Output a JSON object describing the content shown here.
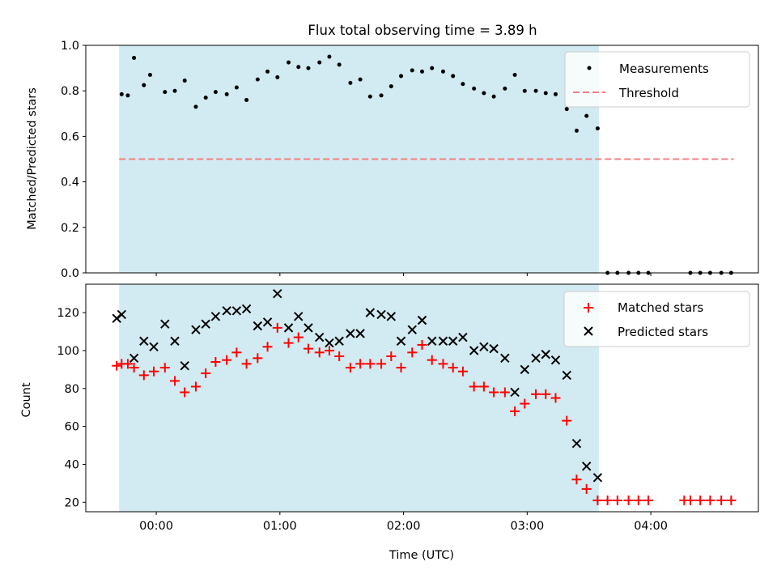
{
  "title": "Flux total observing time = 3.89 h",
  "colors": {
    "shade": "#add8e6",
    "threshold": "#f08080",
    "matched": "#ff0000",
    "predicted": "#000000"
  },
  "chart_data": [
    {
      "type": "scatter",
      "id": "top",
      "ylabel": "Matched/Predicted stars",
      "ylim": [
        0,
        1
      ],
      "yticks": [
        0.0,
        0.2,
        0.4,
        0.6,
        0.8,
        1.0
      ],
      "ytick_labels": [
        "0.0",
        "0.2",
        "0.4",
        "0.6",
        "0.8",
        "1.0"
      ],
      "xlim_hours": [
        -0.57,
        4.87
      ],
      "shaded_span_hours": [
        -0.3,
        3.58
      ],
      "threshold_value": 0.5,
      "threshold_span_hours": [
        -0.3,
        4.67
      ],
      "legend": [
        "Measurements",
        "Threshold"
      ],
      "series": [
        {
          "name": "Measurements",
          "x": [
            -0.28,
            -0.23,
            -0.18,
            -0.1,
            -0.05,
            0.07,
            0.15,
            0.23,
            0.32,
            0.4,
            0.48,
            0.57,
            0.65,
            0.73,
            0.82,
            0.9,
            0.98,
            1.07,
            1.15,
            1.23,
            1.32,
            1.4,
            1.48,
            1.57,
            1.65,
            1.73,
            1.82,
            1.9,
            1.98,
            2.07,
            2.15,
            2.23,
            2.32,
            2.4,
            2.48,
            2.57,
            2.65,
            2.73,
            2.82,
            2.9,
            2.98,
            3.07,
            3.15,
            3.23,
            3.32,
            3.4,
            3.48,
            3.57,
            3.65,
            3.73,
            3.82,
            3.9,
            3.98,
            4.32,
            4.4,
            4.48,
            4.57,
            4.65
          ],
          "y": [
            0.785,
            0.78,
            0.945,
            0.825,
            0.87,
            0.795,
            0.8,
            0.845,
            0.73,
            0.77,
            0.795,
            0.785,
            0.815,
            0.76,
            0.85,
            0.885,
            0.86,
            0.925,
            0.905,
            0.9,
            0.925,
            0.95,
            0.915,
            0.835,
            0.85,
            0.775,
            0.78,
            0.82,
            0.865,
            0.89,
            0.885,
            0.9,
            0.885,
            0.865,
            0.83,
            0.81,
            0.79,
            0.775,
            0.81,
            0.87,
            0.8,
            0.8,
            0.79,
            0.785,
            0.72,
            0.625,
            0.69,
            0.635,
            0.0,
            0.0,
            0.0,
            0.0,
            0.0,
            0.0,
            0.0,
            0.0,
            0.0,
            0.0
          ]
        },
        {
          "name": "Threshold",
          "x": [
            -0.3,
            4.67
          ],
          "y": [
            0.5,
            0.5
          ]
        }
      ]
    },
    {
      "type": "scatter",
      "id": "bottom",
      "ylabel": "Count",
      "xlabel": "Time (UTC)",
      "ylim": [
        15,
        135
      ],
      "yticks": [
        20,
        40,
        60,
        80,
        100,
        120
      ],
      "ytick_labels": [
        "20",
        "40",
        "60",
        "80",
        "100",
        "120"
      ],
      "xlim_hours": [
        -0.57,
        4.87
      ],
      "xticks_hours": [
        0,
        1,
        2,
        3,
        4
      ],
      "xtick_labels": [
        "00:00",
        "01:00",
        "02:00",
        "03:00",
        "04:00"
      ],
      "shaded_span_hours": [
        -0.3,
        3.58
      ],
      "legend": [
        "Matched stars",
        "Predicted stars"
      ],
      "series": [
        {
          "name": "Matched stars",
          "x": [
            -0.32,
            -0.28,
            -0.23,
            -0.18,
            -0.1,
            -0.02,
            0.07,
            0.15,
            0.23,
            0.32,
            0.4,
            0.48,
            0.57,
            0.65,
            0.73,
            0.82,
            0.9,
            0.98,
            1.07,
            1.15,
            1.23,
            1.32,
            1.4,
            1.48,
            1.57,
            1.65,
            1.73,
            1.82,
            1.9,
            1.98,
            2.07,
            2.15,
            2.23,
            2.32,
            2.4,
            2.48,
            2.57,
            2.65,
            2.73,
            2.82,
            2.9,
            2.98,
            3.07,
            3.15,
            3.23,
            3.32,
            3.4,
            3.48,
            3.57,
            3.65,
            3.73,
            3.82,
            3.9,
            3.98,
            4.27,
            4.32,
            4.4,
            4.48,
            4.57,
            4.65
          ],
          "y": [
            92,
            93,
            93,
            91,
            87,
            89,
            91,
            84,
            78,
            81,
            88,
            94,
            95,
            99,
            93,
            96,
            102,
            112,
            104,
            107,
            101,
            99,
            100,
            97,
            91,
            93,
            93,
            93,
            97,
            91,
            99,
            103,
            95,
            93,
            91,
            89,
            81,
            81,
            78,
            78,
            68,
            72,
            77,
            77,
            75,
            63,
            32,
            27,
            21,
            21,
            21,
            21,
            21,
            21,
            21,
            21,
            21,
            21,
            21,
            21
          ]
        },
        {
          "name": "Predicted stars",
          "x": [
            -0.32,
            -0.28,
            -0.18,
            -0.1,
            -0.02,
            0.07,
            0.15,
            0.23,
            0.32,
            0.4,
            0.48,
            0.57,
            0.65,
            0.73,
            0.82,
            0.9,
            0.98,
            1.07,
            1.15,
            1.23,
            1.32,
            1.4,
            1.48,
            1.57,
            1.65,
            1.73,
            1.82,
            1.9,
            1.98,
            2.07,
            2.15,
            2.23,
            2.32,
            2.4,
            2.48,
            2.57,
            2.65,
            2.73,
            2.82,
            2.9,
            2.98,
            3.07,
            3.15,
            3.23,
            3.32,
            3.4,
            3.48,
            3.57
          ],
          "y": [
            117,
            119,
            96,
            105,
            102,
            114,
            105,
            92,
            111,
            114,
            118,
            121,
            121,
            122,
            113,
            115,
            130,
            112,
            118,
            112,
            107,
            104,
            105,
            109,
            109,
            120,
            119,
            118,
            105,
            111,
            116,
            105,
            105,
            105,
            107,
            100,
            102,
            101,
            96,
            78,
            90,
            96,
            98,
            95,
            87,
            51,
            39,
            33
          ]
        }
      ]
    }
  ]
}
